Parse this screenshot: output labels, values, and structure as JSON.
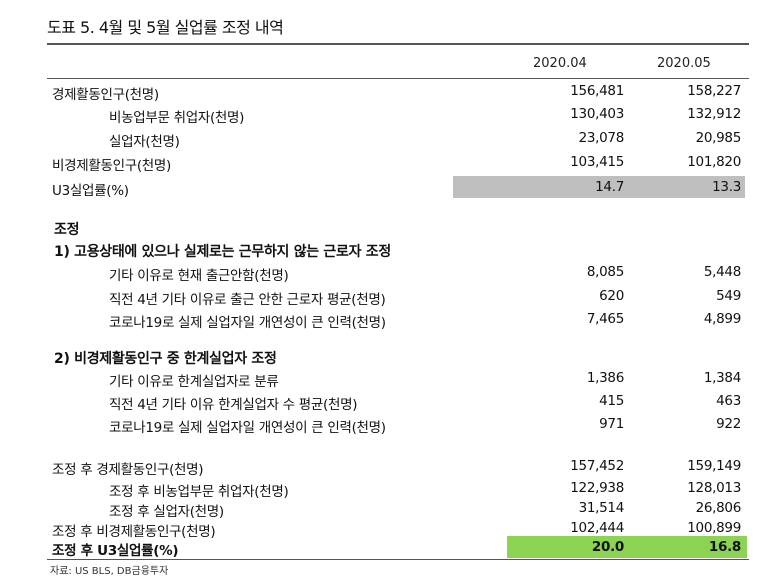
{
  "title": "도표 5. 4월 및 5월 실업률 조정 내역",
  "columns": [
    "2020.04",
    "2020.05"
  ],
  "rows_top": [
    {
      "label": "경제활동인구(천명)",
      "v1": "156,481",
      "v2": "158,227"
    },
    {
      "label": "비농업부문 취업자(천명)",
      "v1": "130,403",
      "v2": "132,912"
    },
    {
      "label": "실업자(천명)",
      "v1": "23,078",
      "v2": "20,985"
    },
    {
      "label": "비경제활동인구(천명)",
      "v1": "103,415",
      "v2": "101,820"
    },
    {
      "label": "U3실업률(%)",
      "v1": "14.7",
      "v2": "13.3"
    }
  ],
  "section_heading": "조정",
  "section1_title": "1) 고용상태에 있으나 실제로는 근무하지 않는 근로자 조정",
  "section1_rows": [
    {
      "label": "기타 이유로 현재 출근안함(천명)",
      "v1": "8,085",
      "v2": "5,448"
    },
    {
      "label": "직전 4년 기타 이유로 출근 안한 근로자 평균(천명)",
      "v1": "620",
      "v2": "549"
    },
    {
      "label": "코로나19로 실제 실업자일 개연성이 큰 인력(천명)",
      "v1": "7,465",
      "v2": "4,899"
    }
  ],
  "section2_title": "2) 비경제활동인구 중 한계실업자 조정",
  "section2_rows": [
    {
      "label": "기타 이유로 한계실업자로 분류",
      "v1": "1,386",
      "v2": "1,384"
    },
    {
      "label": "직전 4년 기타 이유 한계실업자 수 평균(천명)",
      "v1": "415",
      "v2": "463"
    },
    {
      "label": "코로나19로 실제 실업자일 개연성이 큰 인력(천명)",
      "v1": "971",
      "v2": "922"
    }
  ],
  "rows_bottom": [
    {
      "label": "조정 후 경제활동인구(천명)",
      "v1": "157,452",
      "v2": "159,149"
    },
    {
      "label": "조정 후 비농업부문 취업자(천명)",
      "v1": "122,938",
      "v2": "128,013"
    },
    {
      "label": "조정 후 실업자(천명)",
      "v1": "31,514",
      "v2": "26,806"
    },
    {
      "label": "조정 후 비경제활동인구(천명)",
      "v1": "102,444",
      "v2": "100,899"
    },
    {
      "label": "조정 후 U3실업률(%)",
      "v1": "20.0",
      "v2": "16.8"
    }
  ],
  "highlight_colors": {
    "u3_gray": "#bfbfbf",
    "u3_adjusted_green": "#8cd353"
  },
  "source": "자료: US BLS, DB금융투자"
}
